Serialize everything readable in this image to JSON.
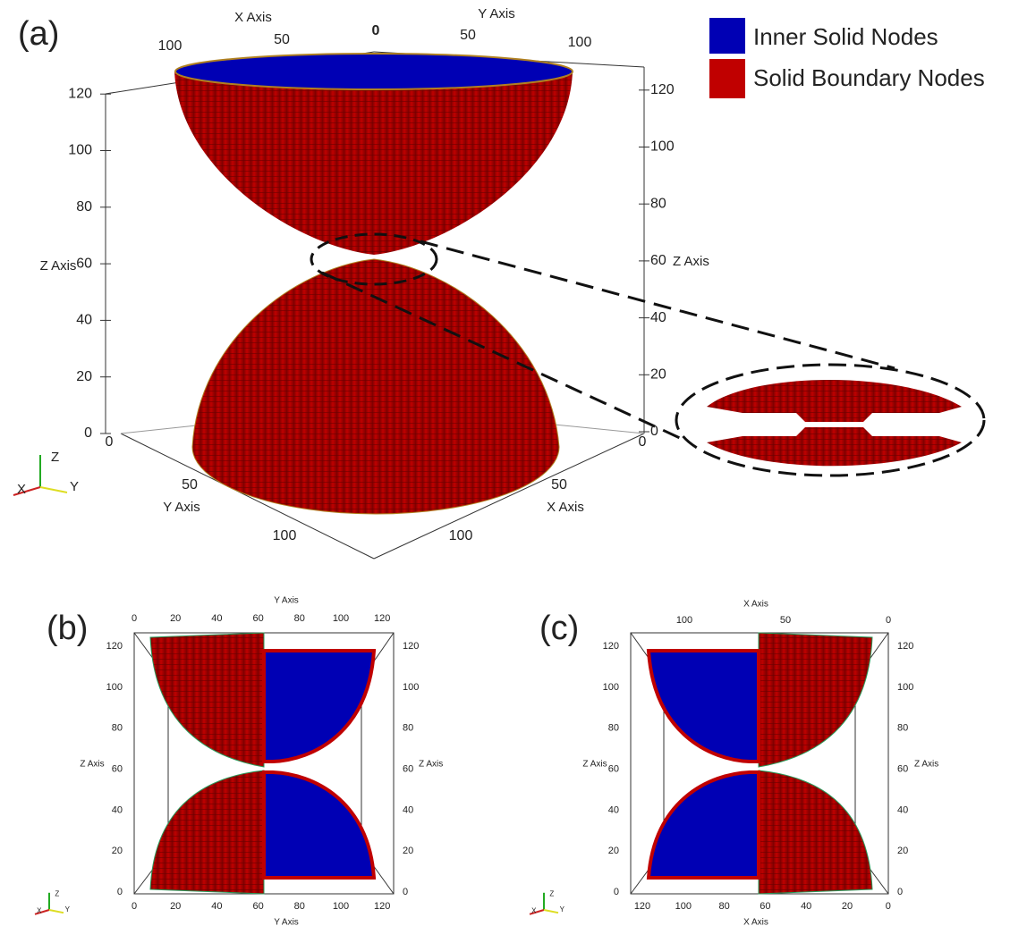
{
  "legend": [
    {
      "label": "Inner Solid Nodes",
      "color": "#0000b4"
    },
    {
      "label": "Solid Boundary Nodes",
      "color": "#c00000"
    }
  ],
  "panel_a": {
    "label": "(a)",
    "top_x_axis_title": "X Axis",
    "top_x_ticks": [
      100,
      50
    ],
    "top_center_tick": 0,
    "top_y_axis_title": "Y Axis",
    "top_y_ticks": [
      50,
      100
    ],
    "left_z_axis_title": "Z Axis",
    "z_ticks": [
      0,
      20,
      40,
      60,
      80,
      100,
      120
    ],
    "right_z_axis_title": "Z Axis",
    "bottom_y_axis_title": "Y Axis",
    "bottom_y_ticks": [
      0,
      50,
      100
    ],
    "bottom_x_axis_title": "X Axis",
    "bottom_x_ticks": [
      0,
      50,
      100
    ],
    "triad": [
      "Z",
      "X",
      "Y"
    ]
  },
  "panel_b": {
    "label": "(b)",
    "top_axis_title": "Y Axis",
    "x_ticks": [
      0,
      20,
      40,
      60,
      80,
      100,
      120
    ],
    "z_axis_title": "Z Axis",
    "z_ticks": [
      0,
      20,
      40,
      60,
      80,
      100,
      120
    ],
    "bottom_axis_title": "Y Axis",
    "triad": [
      "Z",
      "X",
      "Y"
    ]
  },
  "panel_c": {
    "label": "(c)",
    "top_axis_title": "X Axis",
    "top_ticks": [
      100,
      50,
      0
    ],
    "z_axis_title": "Z Axis",
    "z_ticks": [
      0,
      20,
      40,
      60,
      80,
      100,
      120
    ],
    "bottom_axis_title": "X Axis",
    "bottom_ticks": [
      120,
      100,
      80,
      60,
      40,
      20,
      0
    ],
    "triad": [
      "Z",
      "X",
      "Y"
    ]
  }
}
